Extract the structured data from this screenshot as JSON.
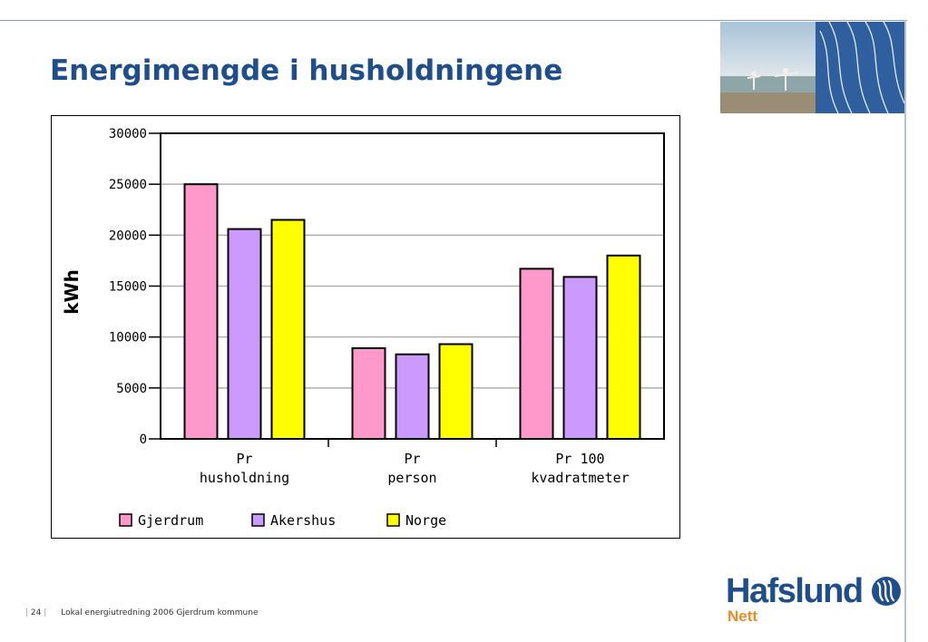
{
  "slide": {
    "title": "Energimengde i husholdningene",
    "page_number": "24",
    "footer_text": "Lokal energiutredning 2006 Gjerdrum kommune",
    "logo_text": "Hafslund",
    "logo_subtext": "Nett",
    "colors": {
      "title": "#1f4e8c",
      "logo_blue": "#1f4e8c",
      "logo_orange": "#f08a24",
      "header_panel": "#2f5f9e"
    }
  },
  "chart_data": {
    "type": "bar",
    "title": "",
    "xlabel": "",
    "ylabel": "kWh",
    "ylim": [
      0,
      30000
    ],
    "yticks": [
      "0",
      "5000",
      "10000",
      "15000",
      "20000",
      "25000",
      "30000"
    ],
    "categories": [
      [
        "Pr",
        "husholdning"
      ],
      [
        "Pr",
        "person"
      ],
      [
        "Pr 100",
        "kvadratmeter"
      ]
    ],
    "series": [
      {
        "name": "Gjerdrum",
        "color": "#ff99cc",
        "values": [
          25000,
          8900,
          16700
        ]
      },
      {
        "name": "Akershus",
        "color": "#cc99ff",
        "values": [
          20600,
          8300,
          15900
        ]
      },
      {
        "name": "Norge",
        "color": "#ffff00",
        "values": [
          21500,
          9300,
          18000
        ]
      }
    ],
    "grid": true,
    "legend": "bottom"
  }
}
